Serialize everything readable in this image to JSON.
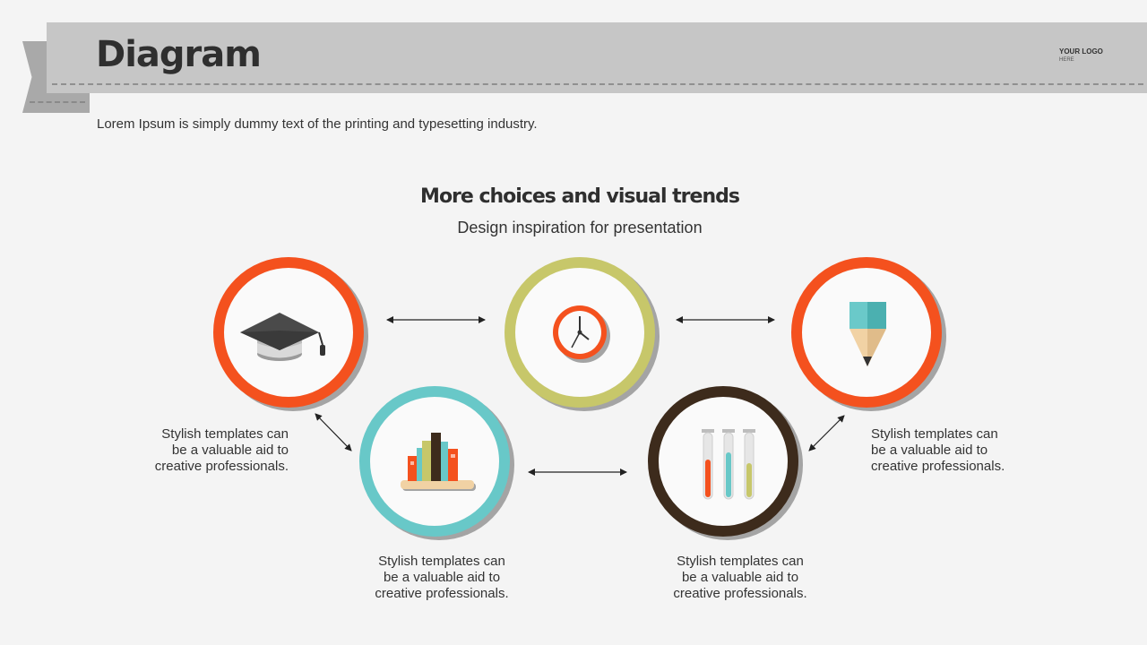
{
  "header": {
    "title": "Diagram",
    "logo_line1": "YOUR LOGO",
    "logo_line2": "HERE"
  },
  "intro_text": "Lorem Ipsum is simply dummy text of the printing and typesetting industry.",
  "diagram": {
    "title": "More choices and visual trends",
    "subtitle": "Design inspiration for presentation",
    "nodes": [
      {
        "icon": "graduation-cap-icon",
        "ring_color": "#f4511e"
      },
      {
        "icon": "clock-icon",
        "ring_color": "#c7c76a"
      },
      {
        "icon": "pencil-icon",
        "ring_color": "#f4511e"
      },
      {
        "icon": "books-icon",
        "ring_color": "#68c8c8"
      },
      {
        "icon": "test-tubes-icon",
        "ring_color": "#3d2b1c"
      }
    ],
    "captions": [
      {
        "line1": "Stylish templates can",
        "line2": "be a valuable aid to",
        "line3": "creative professionals."
      },
      {
        "line1": "Stylish templates can",
        "line2": "be a valuable aid to",
        "line3": "creative professionals."
      },
      {
        "line1": "Stylish templates can",
        "line2": "be a valuable aid to",
        "line3": "creative professionals."
      },
      {
        "line1": "Stylish templates can",
        "line2": "be a valuable aid to",
        "line3": "creative professionals."
      }
    ]
  },
  "colors": {
    "orange": "#f4511e",
    "olive": "#c7c76a",
    "teal": "#68c8c8",
    "dark_brown": "#3d2b1c",
    "banner_gray": "#c6c6c6"
  }
}
